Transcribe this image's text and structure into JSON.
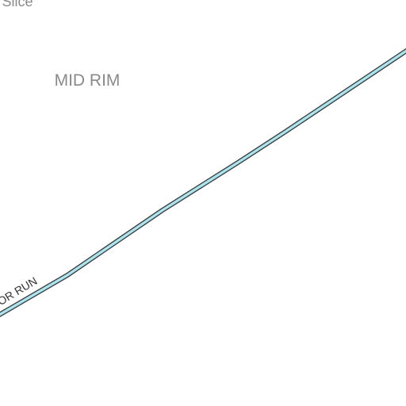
{
  "map": {
    "labels": {
      "top_fragment": "Slice",
      "neighborhood": "MID RIM",
      "road": "OR RUN"
    },
    "colors": {
      "background": "#ffffff",
      "road_fill": "#a9e4ef",
      "road_casing": "#3a3a3a",
      "area_label": "#8a8a8a",
      "road_label": "#333333"
    }
  }
}
